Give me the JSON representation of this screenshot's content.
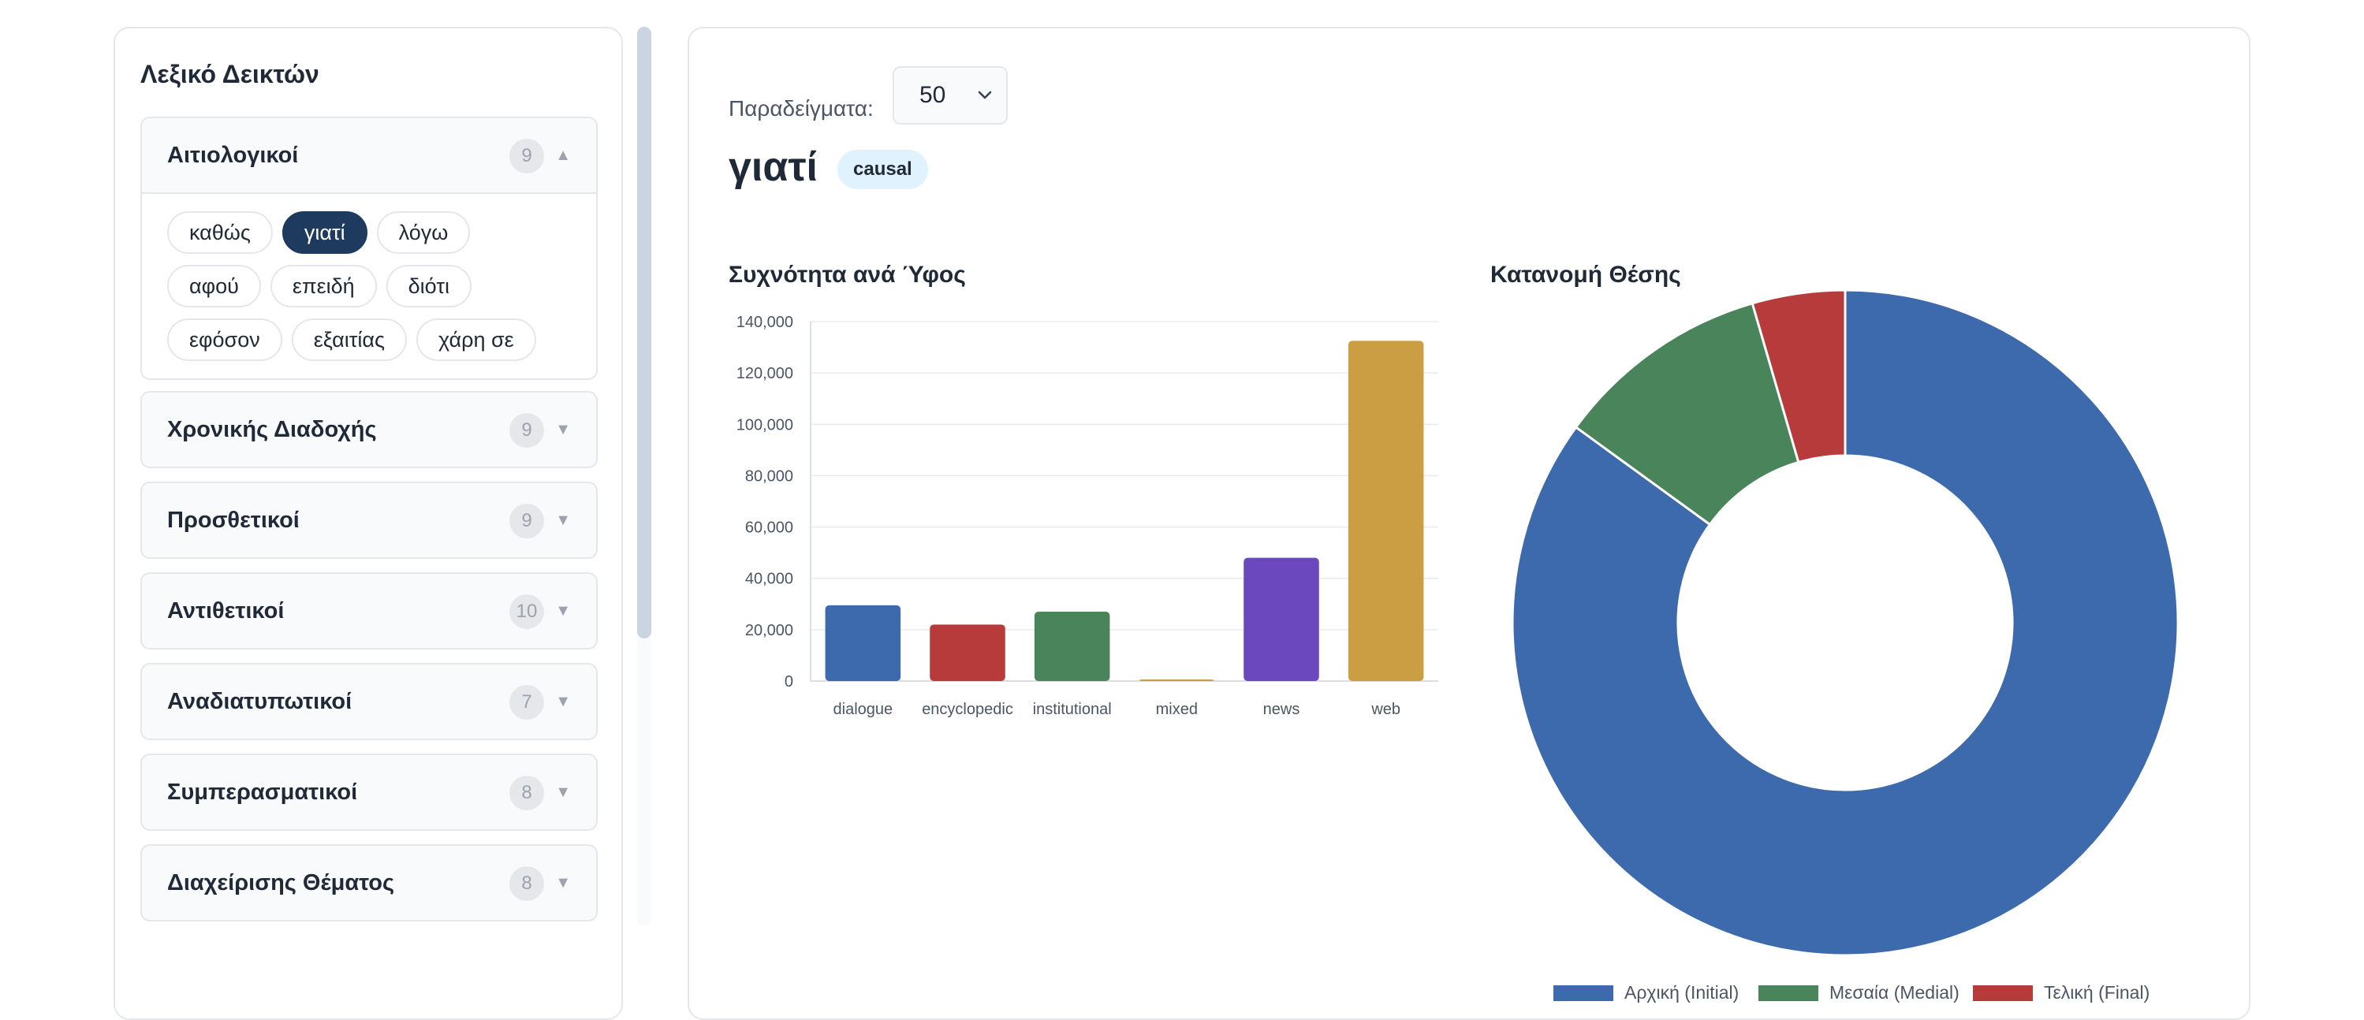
{
  "sidebar": {
    "title": "Λεξικό Δεικτών",
    "groups": [
      {
        "label": "Αιτιολογικοί",
        "count": "9",
        "expanded": true,
        "items": [
          "καθώς",
          "γιατί",
          "λόγω",
          "αφού",
          "επειδή",
          "διότι",
          "εφόσον",
          "εξαιτίας",
          "χάρη σε"
        ],
        "selected": "γιατί"
      },
      {
        "label": "Χρονικής Διαδοχής",
        "count": "9"
      },
      {
        "label": "Προσθετικοί",
        "count": "9"
      },
      {
        "label": "Αντιθετικοί",
        "count": "10"
      },
      {
        "label": "Αναδιατυπωτικοί",
        "count": "7"
      },
      {
        "label": "Συμπερασματικοί",
        "count": "8"
      },
      {
        "label": "Διαχείρισης Θέματος",
        "count": "8"
      }
    ],
    "arrows": {
      "expanded": "▲",
      "collapsed": "▼"
    }
  },
  "main": {
    "samples_label": "Παραδείγματα:",
    "samples_value": "50",
    "word": "γιατί",
    "category_badge": "causal"
  },
  "colors": {
    "accent": "#1e3a5f",
    "blue": "#3d6aad",
    "red": "#b73b3b",
    "green": "#4a845b",
    "purple": "#6b48bd",
    "gold": "#cc9e43",
    "badge_bg": "#e0f2fe"
  },
  "chart_data": [
    {
      "type": "bar",
      "title": "Συχνότητα ανά Ύφος",
      "categories": [
        "dialogue",
        "encyclopedic",
        "institutional",
        "mixed",
        "news",
        "web"
      ],
      "values": [
        29500,
        22000,
        27000,
        600,
        48000,
        132500
      ],
      "colors": [
        "#3d6aad",
        "#b73b3b",
        "#4a845b",
        "#cc9e43",
        "#6b48bd",
        "#cc9e43"
      ],
      "ylim": [
        0,
        140000
      ],
      "yticks": [
        "0",
        "20,000",
        "40,000",
        "60,000",
        "80,000",
        "100,000",
        "120,000",
        "140,000"
      ],
      "grid": true
    },
    {
      "type": "pie",
      "title": "Κατανομή Θέσης",
      "donut": true,
      "labels": [
        "Αρχική (Initial)",
        "Μεσαία (Medial)",
        "Τελική (Final)"
      ],
      "values": [
        85,
        10.5,
        4.5
      ],
      "colors": [
        "#3d6aad",
        "#4a845b",
        "#b73b3b"
      ],
      "legend": "bottom"
    }
  ]
}
